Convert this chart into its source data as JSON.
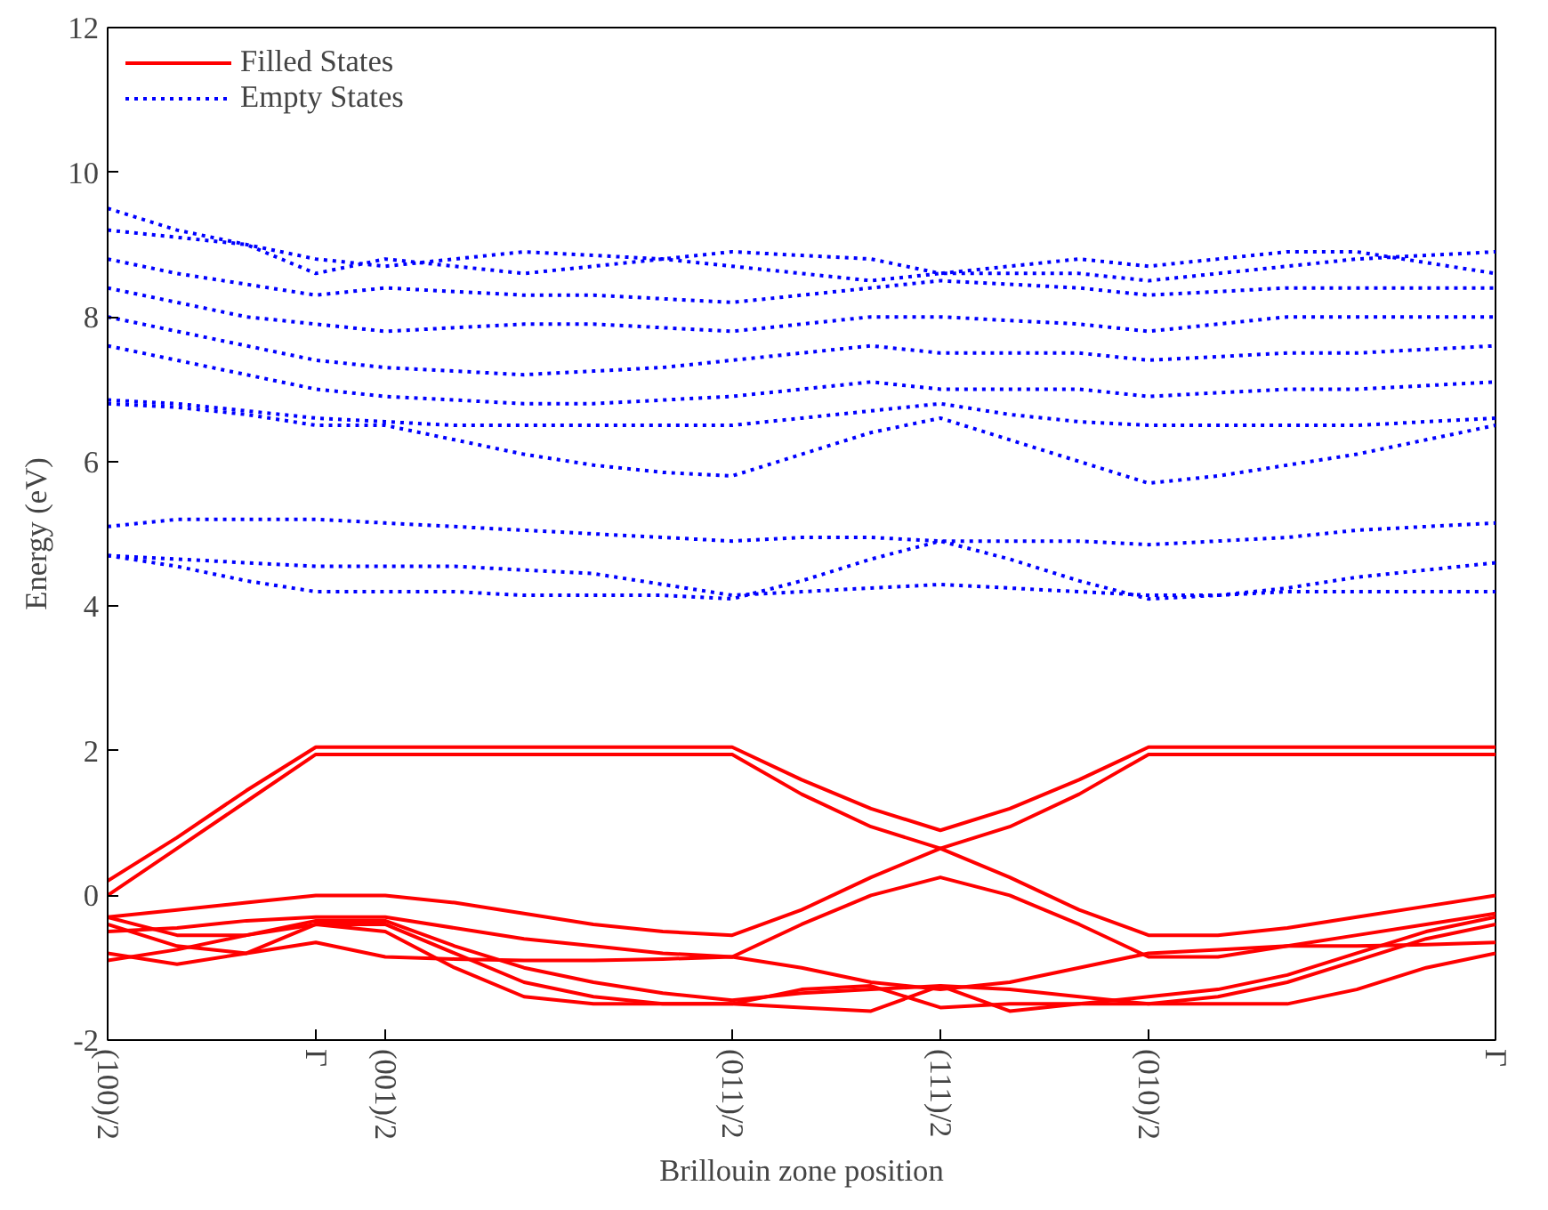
{
  "chart_data": {
    "type": "line",
    "xlabel": "Brillouin zone position",
    "ylabel": "Energy (eV)",
    "categories": [
      "(100)/2",
      null,
      null,
      "Γ",
      "(001)/2",
      null,
      null,
      null,
      null,
      "(011)/2",
      null,
      null,
      "(111)/2",
      null,
      null,
      "(010)/2",
      null,
      null,
      null,
      null,
      "Γ"
    ],
    "ylim": [
      -2,
      12
    ],
    "yticks": [
      -2,
      0,
      2,
      4,
      6,
      8,
      10,
      12
    ],
    "grid": false,
    "legend": "top left",
    "series": [
      {
        "name": "Filled States",
        "color": "#ff0000",
        "line_style": "solid",
        "values": [
          0.2,
          0.8,
          1.45,
          2.05,
          2.05,
          2.05,
          2.05,
          2.05,
          2.05,
          2.05,
          1.6,
          1.2,
          0.9,
          1.2,
          1.6,
          2.05,
          2.05,
          2.05,
          2.05,
          2.05,
          2.05
        ]
      },
      {
        "color": "#ff0000",
        "line_style": "solid",
        "values": [
          0.0,
          0.65,
          1.3,
          1.95,
          1.95,
          1.95,
          1.95,
          1.95,
          1.95,
          1.95,
          1.4,
          0.95,
          0.65,
          0.95,
          1.4,
          1.95,
          1.95,
          1.95,
          1.95,
          1.95,
          1.95
        ]
      },
      {
        "color": "#ff0000",
        "line_style": "solid",
        "values": [
          -0.3,
          -0.2,
          -0.1,
          0.0,
          0.0,
          -0.1,
          -0.25,
          -0.4,
          -0.5,
          -0.55,
          -0.2,
          0.25,
          0.65,
          0.25,
          -0.2,
          -0.55,
          -0.55,
          -0.45,
          -0.3,
          -0.15,
          0.0
        ]
      },
      {
        "color": "#ff0000",
        "line_style": "solid",
        "values": [
          -0.5,
          -0.45,
          -0.35,
          -0.3,
          -0.3,
          -0.45,
          -0.6,
          -0.7,
          -0.8,
          -0.85,
          -0.4,
          0.0,
          0.25,
          0.0,
          -0.4,
          -0.85,
          -0.85,
          -0.7,
          -0.55,
          -0.4,
          -0.25
        ]
      },
      {
        "color": "#ff0000",
        "line_style": "solid",
        "values": [
          -0.9,
          -0.75,
          -0.55,
          -0.35,
          -0.35,
          -0.7,
          -1.0,
          -1.2,
          -1.35,
          -1.45,
          -1.35,
          -1.3,
          -1.25,
          -1.3,
          -1.4,
          -1.5,
          -1.4,
          -1.2,
          -0.9,
          -0.6,
          -0.4
        ]
      },
      {
        "color": "#ff0000",
        "line_style": "solid",
        "values": [
          -0.4,
          -0.7,
          -0.8,
          -0.65,
          -0.85,
          -0.88,
          -0.9,
          -0.9,
          -0.88,
          -0.85,
          -1.0,
          -1.2,
          -1.3,
          -1.2,
          -1.0,
          -0.8,
          -0.75,
          -0.7,
          -0.7,
          -0.68,
          -0.65
        ]
      },
      {
        "color": "#ff0000",
        "line_style": "solid",
        "values": [
          -0.8,
          -0.95,
          -0.8,
          -0.4,
          -0.4,
          -0.8,
          -1.2,
          -1.4,
          -1.5,
          -1.5,
          -1.55,
          -1.6,
          -1.25,
          -1.6,
          -1.5,
          -1.4,
          -1.3,
          -1.1,
          -0.8,
          -0.5,
          -0.3
        ]
      },
      {
        "color": "#ff0000",
        "line_style": "solid",
        "values": [
          -0.3,
          -0.55,
          -0.55,
          -0.4,
          -0.5,
          -1.0,
          -1.4,
          -1.5,
          -1.5,
          -1.5,
          -1.3,
          -1.25,
          -1.55,
          -1.5,
          -1.5,
          -1.5,
          -1.5,
          -1.5,
          -1.3,
          -1.0,
          -0.8
        ]
      },
      {
        "name": "Empty States",
        "color": "#0000ff",
        "line_style": "dotted",
        "values": [
          5.1,
          5.2,
          5.2,
          5.2,
          5.15,
          5.1,
          5.05,
          5.0,
          4.95,
          4.9,
          4.95,
          4.95,
          4.9,
          4.9,
          4.9,
          4.85,
          4.9,
          4.95,
          5.05,
          5.1,
          5.15
        ]
      },
      {
        "color": "#0000ff",
        "line_style": "dotted",
        "values": [
          4.7,
          4.55,
          4.35,
          4.2,
          4.2,
          4.2,
          4.15,
          4.15,
          4.15,
          4.1,
          4.35,
          4.65,
          4.9,
          4.65,
          4.35,
          4.1,
          4.15,
          4.25,
          4.4,
          4.5,
          4.6
        ]
      },
      {
        "color": "#0000ff",
        "line_style": "dotted",
        "values": [
          4.7,
          4.65,
          4.6,
          4.55,
          4.55,
          4.55,
          4.5,
          4.45,
          4.3,
          4.15,
          4.2,
          4.25,
          4.3,
          4.25,
          4.2,
          4.15,
          4.15,
          4.2,
          4.2,
          4.2,
          4.2
        ]
      },
      {
        "color": "#0000ff",
        "line_style": "dotted",
        "values": [
          6.8,
          6.75,
          6.65,
          6.5,
          6.5,
          6.3,
          6.1,
          5.95,
          5.85,
          5.8,
          6.1,
          6.4,
          6.6,
          6.3,
          6.0,
          5.7,
          5.8,
          5.95,
          6.1,
          6.3,
          6.5
        ]
      },
      {
        "color": "#0000ff",
        "line_style": "dotted",
        "values": [
          6.85,
          6.8,
          6.7,
          6.6,
          6.55,
          6.5,
          6.5,
          6.5,
          6.5,
          6.5,
          6.6,
          6.7,
          6.8,
          6.65,
          6.55,
          6.5,
          6.5,
          6.5,
          6.5,
          6.55,
          6.6
        ]
      },
      {
        "color": "#0000ff",
        "line_style": "dotted",
        "values": [
          7.6,
          7.4,
          7.2,
          7.0,
          6.9,
          6.85,
          6.8,
          6.8,
          6.85,
          6.9,
          7.0,
          7.1,
          7.0,
          7.0,
          7.0,
          6.9,
          6.95,
          7.0,
          7.0,
          7.05,
          7.1
        ]
      },
      {
        "color": "#0000ff",
        "line_style": "dotted",
        "values": [
          8.0,
          7.8,
          7.6,
          7.4,
          7.3,
          7.25,
          7.2,
          7.25,
          7.3,
          7.4,
          7.5,
          7.6,
          7.5,
          7.5,
          7.5,
          7.4,
          7.45,
          7.5,
          7.5,
          7.55,
          7.6
        ]
      },
      {
        "color": "#0000ff",
        "line_style": "dotted",
        "values": [
          8.4,
          8.2,
          8.0,
          7.9,
          7.8,
          7.85,
          7.9,
          7.9,
          7.85,
          7.8,
          7.9,
          8.0,
          8.0,
          7.95,
          7.9,
          7.8,
          7.9,
          8.0,
          8.0,
          8.0,
          8.0
        ]
      },
      {
        "color": "#0000ff",
        "line_style": "dotted",
        "values": [
          8.8,
          8.6,
          8.45,
          8.3,
          8.4,
          8.35,
          8.3,
          8.3,
          8.25,
          8.2,
          8.3,
          8.4,
          8.5,
          8.45,
          8.4,
          8.3,
          8.35,
          8.4,
          8.4,
          8.4,
          8.4
        ]
      },
      {
        "color": "#0000ff",
        "line_style": "dotted",
        "values": [
          9.5,
          9.2,
          9.0,
          8.8,
          8.7,
          8.8,
          8.9,
          8.85,
          8.8,
          8.7,
          8.6,
          8.5,
          8.6,
          8.6,
          8.6,
          8.5,
          8.6,
          8.7,
          8.8,
          8.85,
          8.9
        ]
      },
      {
        "color": "#0000ff",
        "line_style": "dotted",
        "values": [
          9.2,
          9.1,
          9.0,
          8.6,
          8.8,
          8.7,
          8.6,
          8.7,
          8.8,
          8.9,
          8.85,
          8.8,
          8.6,
          8.7,
          8.8,
          8.7,
          8.8,
          8.9,
          8.9,
          8.75,
          8.6
        ]
      }
    ]
  }
}
